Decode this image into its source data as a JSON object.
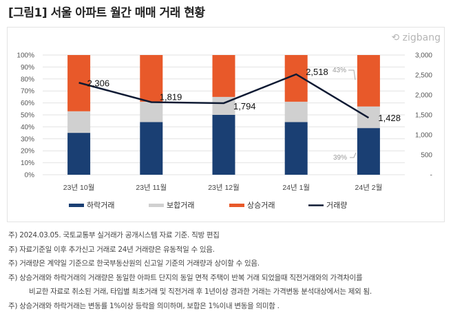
{
  "title": "[그림1] 서울 아파트 월간 매매 거래 현황",
  "logo": "zigbang",
  "chart_data": {
    "type": "bar",
    "stacked": true,
    "categories": [
      "23년 10월",
      "23년 11월",
      "23년 12월",
      "24년 1월",
      "24년 2월"
    ],
    "series": [
      {
        "name": "하락거래",
        "type": "bar",
        "axis": "left",
        "color": "#1a3f73",
        "values": [
          35,
          44,
          50,
          44,
          39
        ]
      },
      {
        "name": "보합거래",
        "type": "bar",
        "axis": "left",
        "color": "#d0d0d0",
        "values": [
          18,
          17,
          15,
          17,
          18
        ]
      },
      {
        "name": "상승거래",
        "type": "bar",
        "axis": "left",
        "color": "#e8592a",
        "values": [
          47,
          39,
          35,
          39,
          43
        ]
      },
      {
        "name": "거래량",
        "type": "line",
        "axis": "right",
        "color": "#0e1a33",
        "values": [
          2306,
          1819,
          1794,
          2518,
          1428
        ],
        "labels": [
          "2,306",
          "1,819",
          "1,794",
          "2,518",
          "1,428"
        ]
      }
    ],
    "left_axis": {
      "ylim": [
        0,
        100
      ],
      "ticks": [
        "0%",
        "10%",
        "20%",
        "30%",
        "40%",
        "50%",
        "60%",
        "70%",
        "80%",
        "90%",
        "100%"
      ]
    },
    "right_axis": {
      "ylim": [
        0,
        3000
      ],
      "ticks": [
        "-",
        "500",
        "1,000",
        "1,500",
        "2,000",
        "2,500",
        "3,000"
      ]
    },
    "annotations": [
      {
        "text": "43%"
      },
      {
        "text": "39%"
      }
    ],
    "grid": true,
    "legend": "bottom"
  },
  "notes": [
    "주) 2024.03.05. 국토교통부 실거래가 공개시스템 자료 기준. 직방 편집",
    "주) 자료기준일 이후 추가신고 거래로 24년 거래량은 유동적일 수 있음.",
    "주) 거래량은 계약일 기준으로 한국부동산원의 신고일 기준의 거래량과 상이할 수 있음.",
    "주) 상승거래와 하락거래의 거래량은 동일한 아파트 단지의 동일 면적 주택이 반복 거래 되었을때 직전거래와의 가격차이를",
    "비교한 자료로 취소된 거래, 타입별 최초거래 및 직전거래 후 1년이상 경과한 거래는 가격변동 분석대상에서는 제외 됨.",
    "주) 상승거래와 하락거래는 변동률 1%이상 등락을 의미하며, 보합은 1%이내 변동을 의미함 ."
  ]
}
